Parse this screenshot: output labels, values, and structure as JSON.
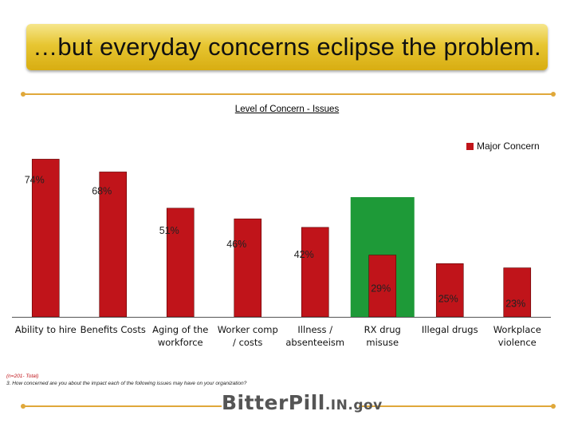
{
  "header": {
    "title": "…but everyday concerns eclipse the problem."
  },
  "chart_data": {
    "type": "bar",
    "title": "Level of Concern - Issues",
    "categories": [
      [
        "Ability to hire"
      ],
      [
        "Benefits Costs"
      ],
      [
        "Aging of the",
        "workforce"
      ],
      [
        "Worker comp",
        "/ costs"
      ],
      [
        "Illness /",
        "absenteeism"
      ],
      [
        "RX drug",
        "misuse"
      ],
      [
        "Illegal drugs"
      ],
      [
        "Workplace",
        "violence"
      ]
    ],
    "series": [
      {
        "name": "Major Concern",
        "values": [
          74,
          68,
          51,
          46,
          42,
          29,
          25,
          23
        ],
        "labels": [
          "74%",
          "68%",
          "51%",
          "46%",
          "42%",
          "29%",
          "25%",
          "23%"
        ]
      }
    ],
    "highlight_index": 5,
    "ylim": [
      0,
      100
    ],
    "legend_position": "top-right",
    "colors": {
      "bar": "#c0141a",
      "highlight": "#1e9a38",
      "axis": "#555555"
    }
  },
  "footnotes": {
    "n": "(n=201- Total)",
    "question": "3. How concerned are you about the impact each of the following issues may have on your organization?"
  },
  "logo": {
    "part1": "BitterPill",
    "part2": ".IN.gov"
  }
}
